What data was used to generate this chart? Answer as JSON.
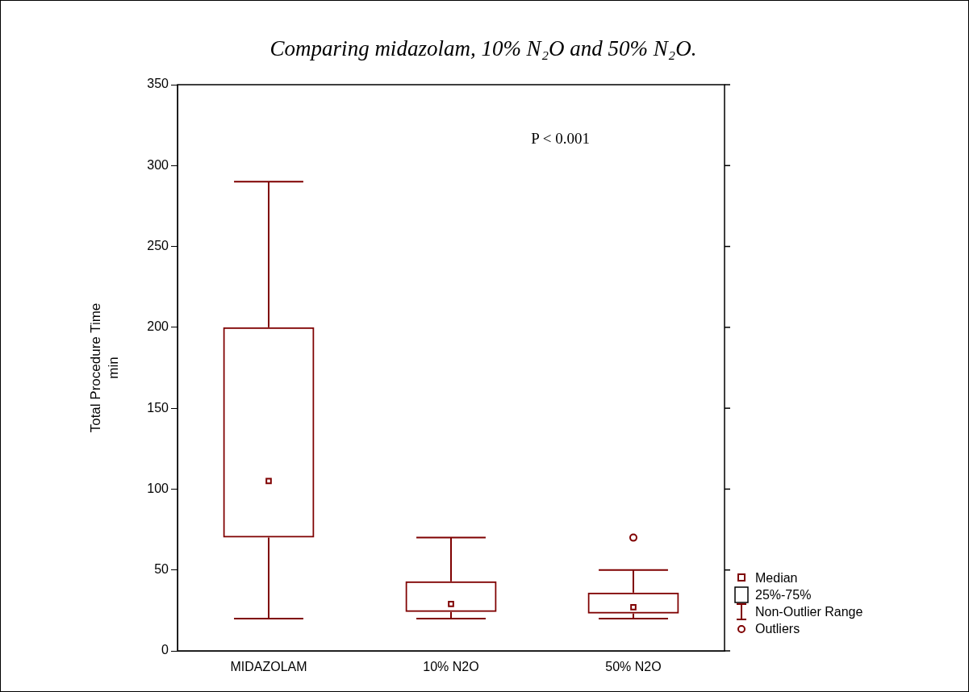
{
  "chart_data": {
    "type": "box",
    "title": "Comparing midazolam, 10% N₂O and 50% N₂O.",
    "ylabel": "Total Procedure Time\nmin",
    "categories": [
      "MIDAZOLAM",
      "10% N2O",
      "50% N2O"
    ],
    "color": "#7f0000",
    "boxes": [
      {
        "low": 20,
        "q1": 70,
        "median": 105,
        "q3": 200,
        "high": 290
      },
      {
        "low": 20,
        "q1": 24,
        "median": 29,
        "q3": 43,
        "high": 70
      },
      {
        "low": 20,
        "q1": 23,
        "median": 27,
        "q3": 36,
        "high": 50,
        "outliers": [
          70
        ]
      }
    ],
    "ylim": [
      0,
      350
    ],
    "yticks": [
      0,
      50,
      100,
      150,
      200,
      250,
      300,
      350
    ],
    "grid": false,
    "marker": "square",
    "annotations": [
      "P < 0.001",
      "Median",
      "25%-75%",
      "Non-Outlier Range",
      "Outliers"
    ]
  }
}
